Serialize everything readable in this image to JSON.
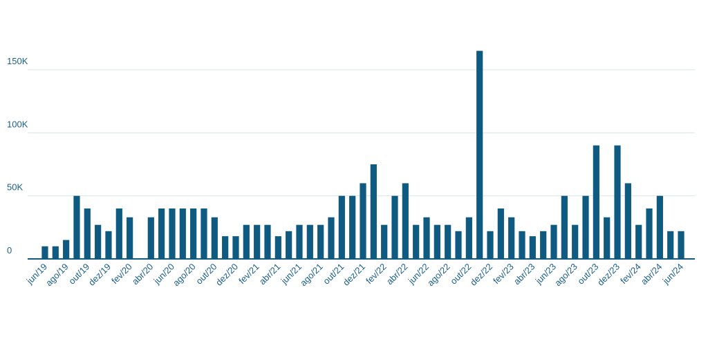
{
  "chart_data": {
    "type": "bar",
    "categories": [
      "jun/19",
      null,
      "ago/19",
      null,
      "out/19",
      null,
      "dez/19",
      null,
      "fev/20",
      null,
      "abr/20",
      null,
      "jun/20",
      null,
      "ago/20",
      null,
      "out/20",
      null,
      "dez/20",
      null,
      "fev/21",
      null,
      "abr/21",
      null,
      "jun/21",
      null,
      "ago/21",
      null,
      "out/21",
      null,
      "dez/21",
      null,
      "fev/22",
      null,
      "abr/22",
      null,
      "jun/22",
      null,
      "ago/22",
      null,
      "out/22",
      null,
      "dez/22",
      null,
      "fev/23",
      null,
      "abr/23",
      null,
      "jun/23",
      null,
      "ago/23",
      null,
      "out/23",
      null,
      "dez/23",
      null,
      "fev/24",
      null,
      "abr/24",
      null,
      "jun/24"
    ],
    "values": [
      10000,
      10000,
      15000,
      50000,
      40000,
      27000,
      22000,
      40000,
      33000,
      0,
      33000,
      40000,
      40000,
      40000,
      40000,
      40000,
      33000,
      18000,
      18000,
      27000,
      27000,
      27000,
      18000,
      22000,
      27000,
      27000,
      27000,
      33000,
      50000,
      50000,
      60000,
      75000,
      27000,
      50000,
      60000,
      27000,
      33000,
      27000,
      27000,
      22000,
      33000,
      165000,
      22000,
      40000,
      33000,
      22000,
      18000,
      22000,
      27000,
      50000,
      27000,
      50000,
      90000,
      33000,
      90000,
      60000,
      27000,
      40000,
      50000,
      22000,
      22000
    ],
    "color": "#0f5a80",
    "ylim": [
      0,
      200000
    ],
    "yticks": [
      {
        "value": 0,
        "label": "0"
      },
      {
        "value": 50000,
        "label": "50K"
      },
      {
        "value": 100000,
        "label": "100K"
      },
      {
        "value": 150000,
        "label": "150K"
      }
    ],
    "grid": true
  }
}
